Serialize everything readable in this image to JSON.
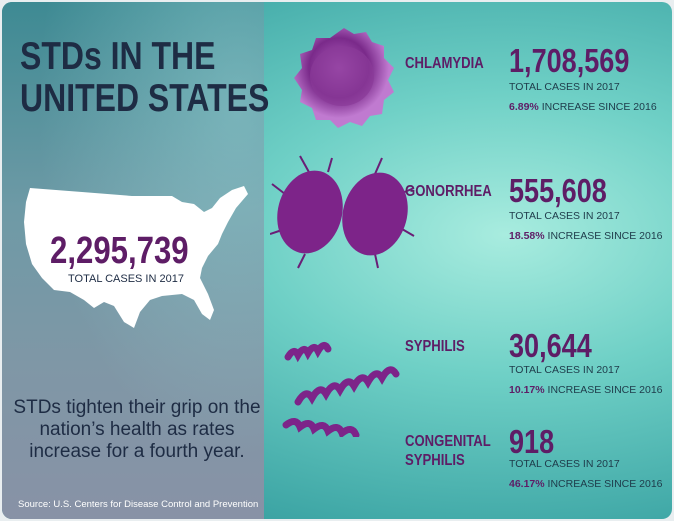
{
  "title_lines": [
    "STDs IN THE",
    "UNITED STATES"
  ],
  "total": {
    "value": "2,295,739",
    "label": "TOTAL CASES IN 2017"
  },
  "tagline": "STDs tighten their grip on the nation’s health as rates increase for a fourth year.",
  "source": "Source: U.S. Centers for Disease Control and Prevention",
  "colors": {
    "purple": "#5e1d66",
    "navy": "#1e2c44",
    "teal": "#6fd0c6"
  },
  "diseases": [
    {
      "name": "CHLAMYDIA",
      "cases": "1,708,569",
      "cases_label": "TOTAL CASES IN 2017",
      "increase": "6.89%",
      "increase_label": "INCREASE SINCE 2016",
      "icon": "chlamydia-cell-icon"
    },
    {
      "name": "GONORRHEA",
      "cases": "555,608",
      "cases_label": "TOTAL CASES IN 2017",
      "increase": "18.58%",
      "increase_label": "INCREASE SINCE 2016",
      "icon": "gonorrhea-bacteria-icon"
    },
    {
      "name": "SYPHILIS",
      "cases": "30,644",
      "cases_label": "TOTAL CASES IN 2017",
      "increase": "10.17%",
      "increase_label": "INCREASE SINCE 2016",
      "icon": "syphilis-spirochete-icon"
    },
    {
      "name_lines": [
        "CONGENITAL",
        "SYPHILIS"
      ],
      "cases": "918",
      "cases_label": "TOTAL CASES IN 2017",
      "increase": "46.17%",
      "increase_label": "INCREASE SINCE 2016"
    }
  ]
}
